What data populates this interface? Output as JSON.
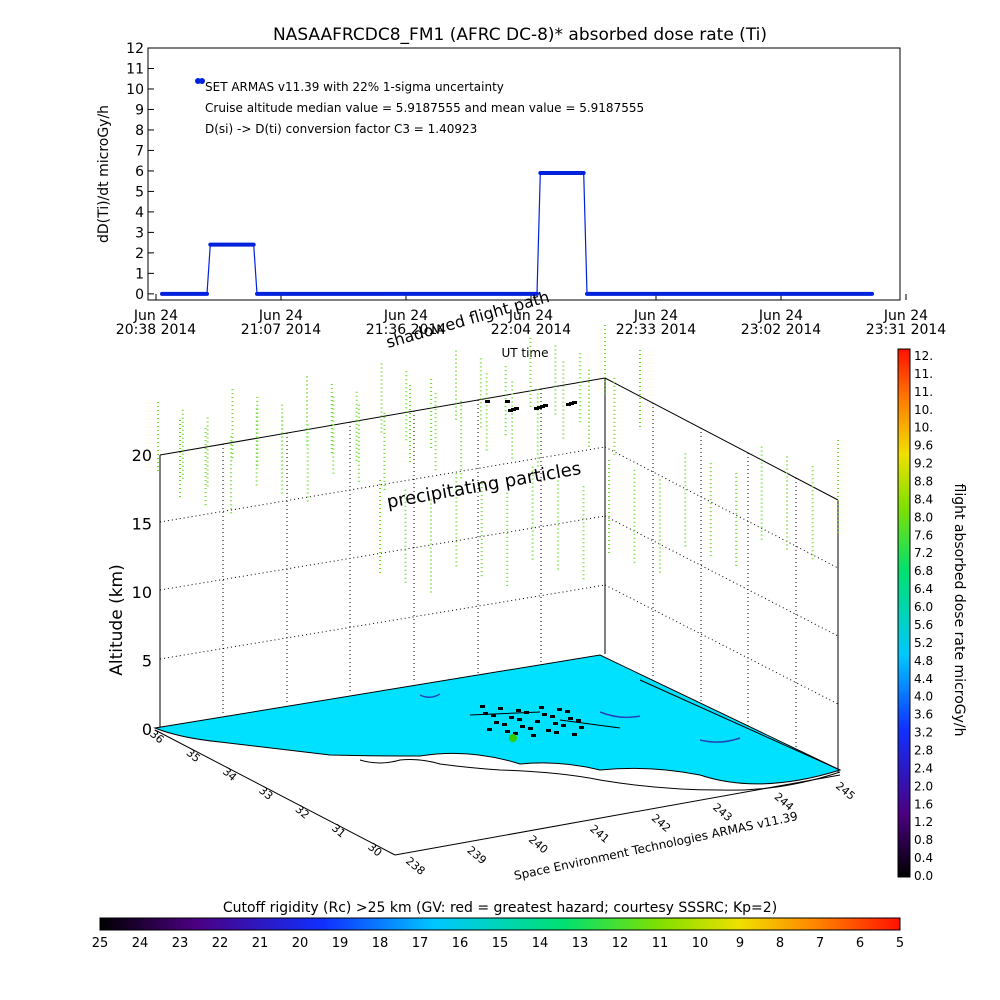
{
  "chart_data": [
    {
      "type": "line",
      "title": "NASAAFRCDC8_FM1 (AFRC DC-8)* absorbed dose rate (Ti)",
      "ylabel": "dD(Ti)/dt microGy/h",
      "xlabel": "UT time",
      "ylim": [
        -0.3,
        12
      ],
      "yticks": [
        "12",
        "11",
        "10",
        "9",
        "8",
        "7",
        "6",
        "5",
        "4",
        "3",
        "2",
        "1",
        "0"
      ],
      "xtick_top": [
        "Jun 24",
        "Jun 24",
        "Jun 24",
        "Jun 24",
        "Jun 24",
        "Jun 24",
        "Jun 24"
      ],
      "xtick_bottom": [
        "20:38 2014",
        "21:07 2014",
        "21:36 2014",
        "22:04 2014",
        "22:33 2014",
        "23:02 2014",
        "23:31 2014"
      ],
      "annotations": [
        "SET ARMAS v11.39 with 22% 1-sigma uncertainty",
        "Cruise altitude median value = 5.9187555 and mean value = 5.9187555",
        "D(si) -> D(ti) conversion factor C3 = 1.40923"
      ],
      "series": [
        {
          "color": "#0022dd",
          "x_minutes": [
            0,
            27,
            29,
            55,
            57,
            225,
            227,
            253,
            255,
            426
          ],
          "y": [
            0,
            0,
            2.4,
            2.4,
            0,
            0,
            5.9,
            5.9,
            0,
            0
          ]
        }
      ]
    },
    {
      "type": "scatter",
      "title": "",
      "zlabel": "Altitude (km)",
      "xlabel": "Space Environment Technologies ARMAS v11.39",
      "zticks": [
        "20",
        "15",
        "10",
        "5",
        "0"
      ],
      "lat_ticks": [
        "30",
        "31",
        "32",
        "33",
        "34",
        "35",
        "36"
      ],
      "lon_ticks": [
        "238",
        "239",
        "240",
        "241",
        "242",
        "243",
        "244",
        "245"
      ],
      "labels": [
        "precipitating particles",
        "shadowed flight path"
      ]
    }
  ],
  "dose_colorbar": {
    "label": "flight absorbed dose rate microGy/h",
    "ticks": [
      "12.",
      "11.",
      "11.",
      "10.",
      "10.",
      "9.6",
      "9.2",
      "8.8",
      "8.4",
      "8.0",
      "7.6",
      "7.2",
      "6.8",
      "6.4",
      "6.0",
      "5.6",
      "5.2",
      "4.8",
      "4.4",
      "4.0",
      "3.6",
      "3.2",
      "2.8",
      "2.4",
      "2.0",
      "1.6",
      "1.2",
      "0.8",
      "0.4",
      "0.0"
    ]
  },
  "rigidity_colorbar": {
    "label": "Cutoff rigidity (Rc) >25 km (GV: red = greatest hazard; courtesy SSSRC; Kp=2)",
    "ticks": [
      "25",
      "24",
      "23",
      "22",
      "21",
      "20",
      "19",
      "18",
      "17",
      "16",
      "15",
      "14",
      "13",
      "12",
      "11",
      "10",
      "9",
      "8",
      "7",
      "6",
      "5"
    ]
  },
  "colors": {
    "series": "#0022dd",
    "ocean": "#00e0ff",
    "particles": "#66dd22"
  }
}
